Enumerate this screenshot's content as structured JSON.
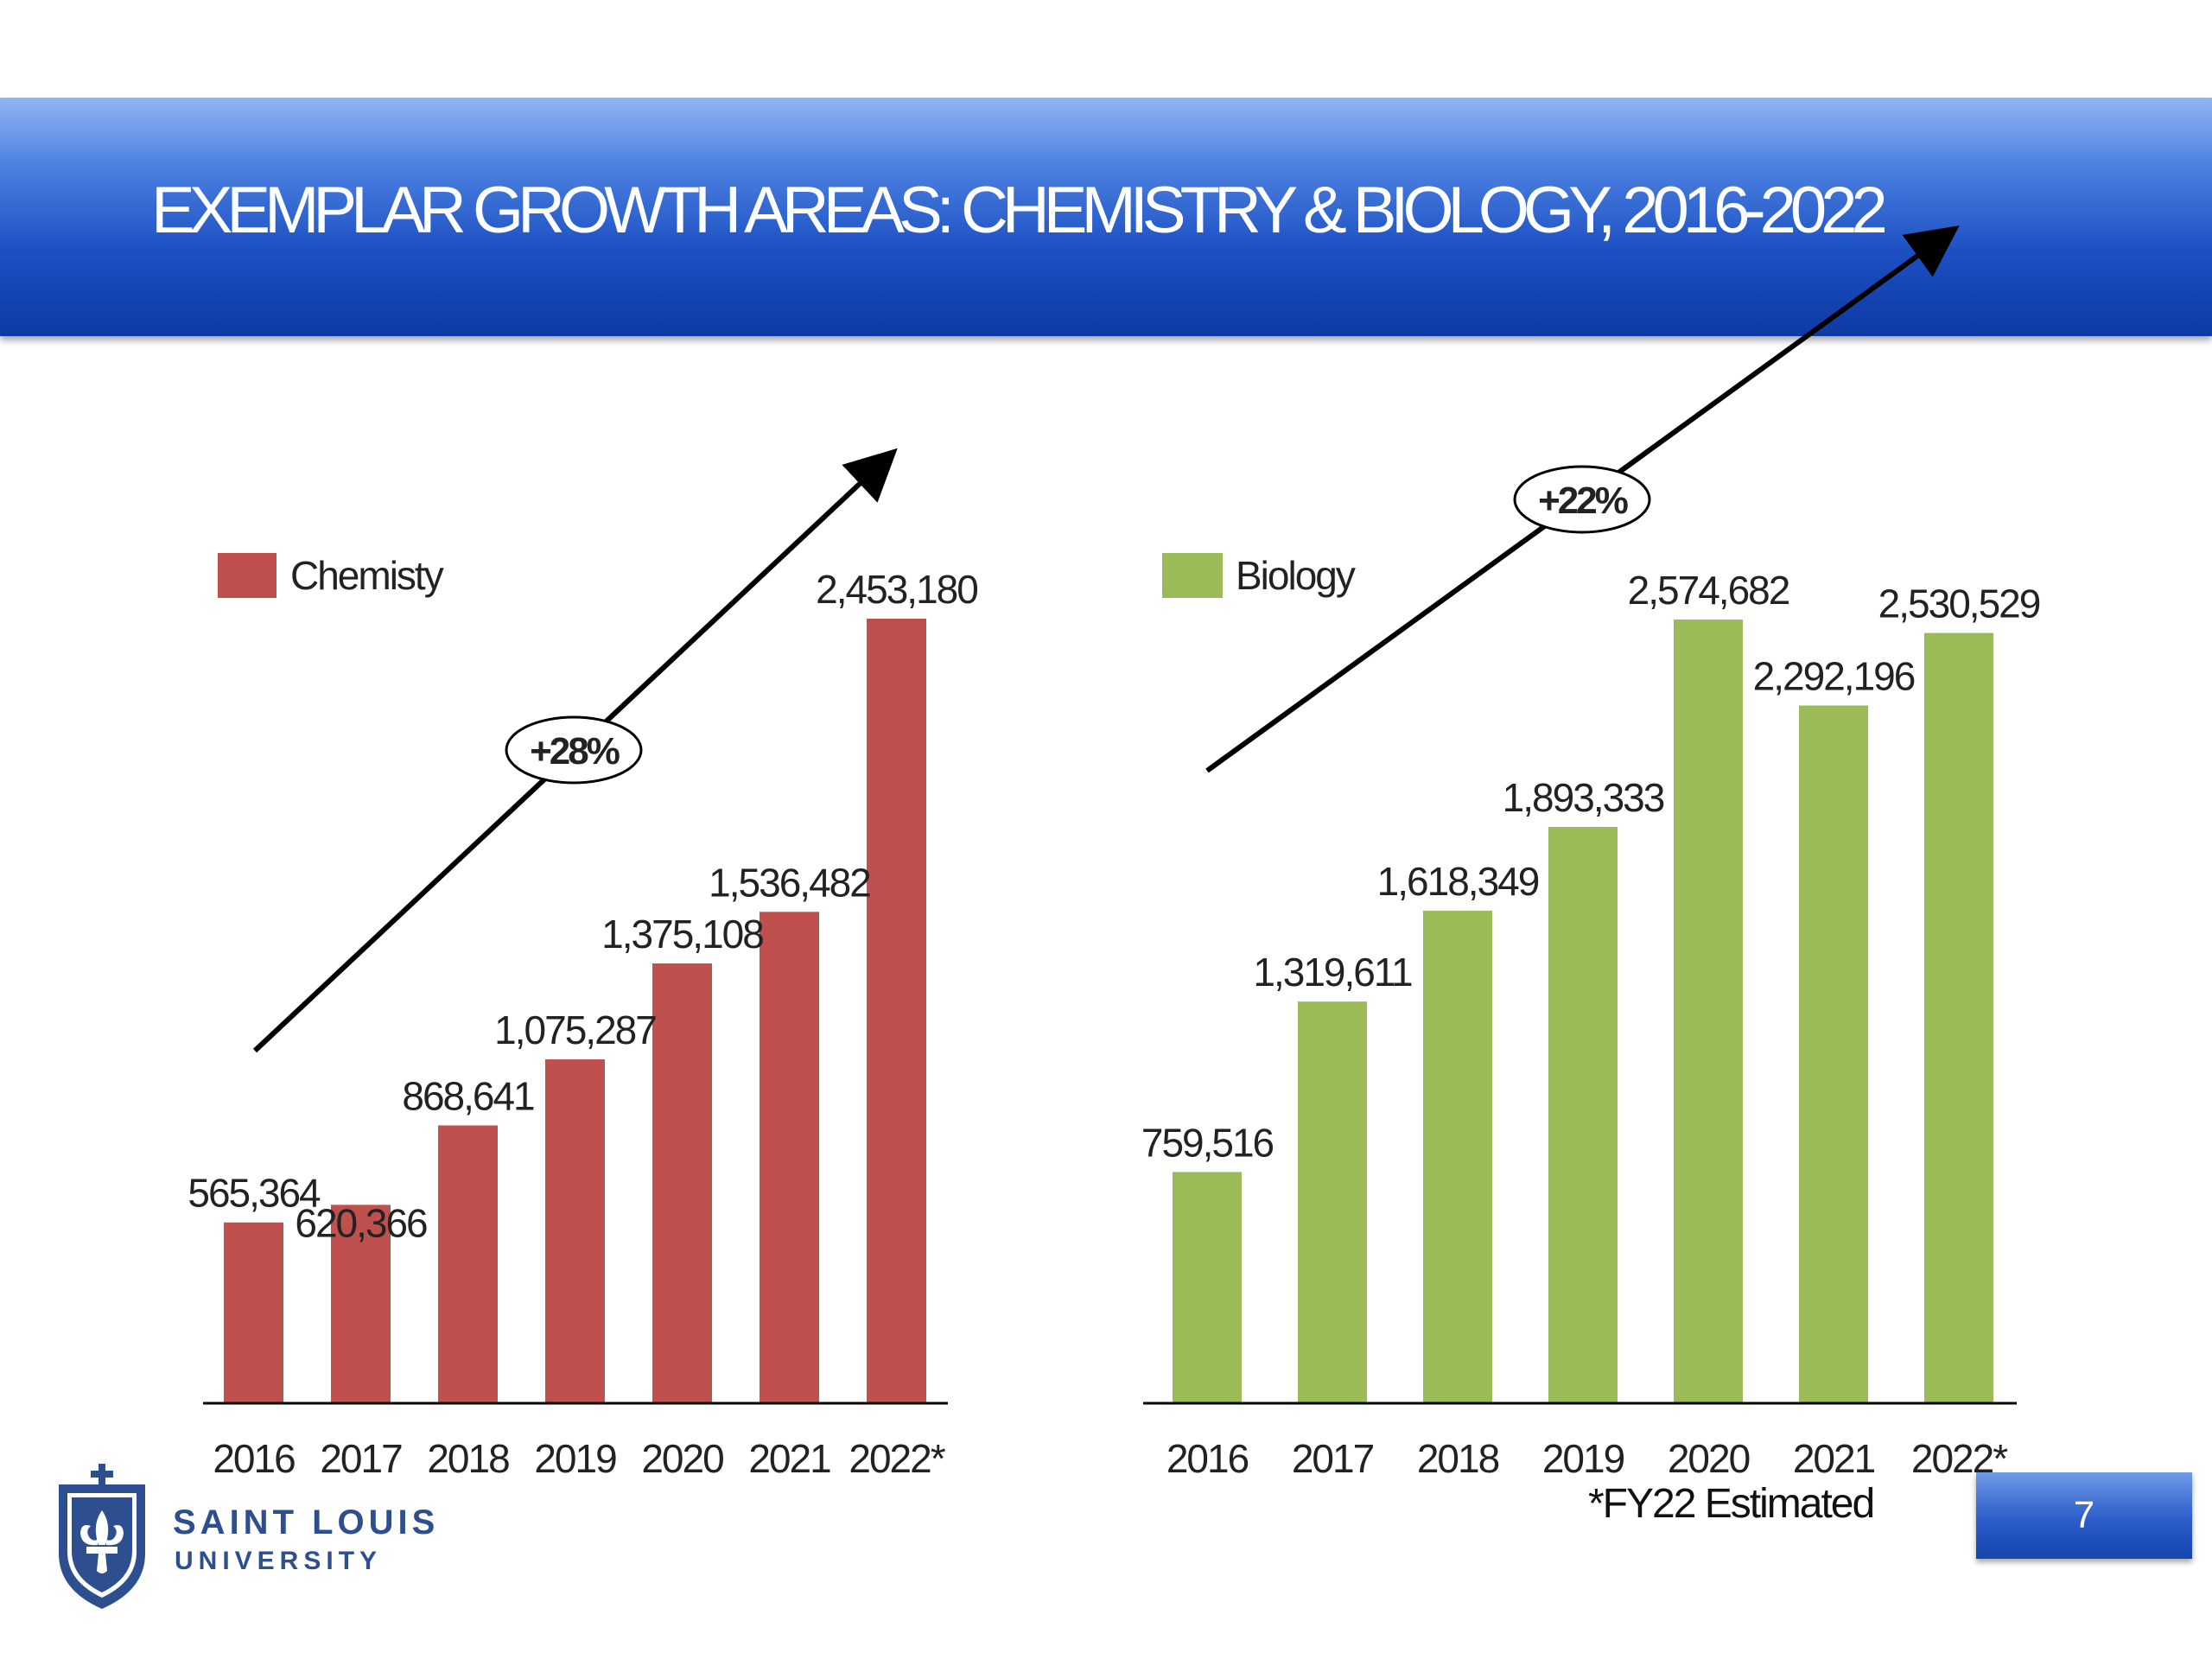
{
  "slide": {
    "title": "EXEMPLAR GROWTH AREAS: CHEMISTRY &  BIOLOGY, 2016-2022",
    "footnote": "*FY22 Estimated",
    "page_number": "7",
    "banner_color": "#1c4fc2"
  },
  "logo": {
    "line1": "SAINT LOUIS",
    "line2": "UNIVERSITY",
    "color": "#2e4f8f"
  },
  "chart_data": [
    {
      "type": "bar",
      "categories": [
        "2016",
        "2017",
        "2018",
        "2019",
        "2020",
        "2021",
        "2022*"
      ],
      "series": [
        {
          "name": "Chemisty",
          "values": [
            565364,
            620366,
            868641,
            1075287,
            1375108,
            1536482,
            2453180
          ],
          "labels": [
            "565,364",
            "620,366",
            "868,641",
            "1,075,287",
            "1,375,108",
            "1,536,482",
            "2,453,180"
          ],
          "color": "#c0504d"
        }
      ],
      "annotation": "+28%",
      "ylim": [
        0,
        2453180
      ],
      "legend_position": "top-left",
      "grid": false
    },
    {
      "type": "bar",
      "categories": [
        "2016",
        "2017",
        "2018",
        "2019",
        "2020",
        "2021",
        "2022*"
      ],
      "series": [
        {
          "name": "Biology",
          "values": [
            759516,
            1319611,
            1618349,
            1893333,
            2574682,
            2292196,
            2530529
          ],
          "labels": [
            "759,516",
            "1,319,611",
            "1,618,349",
            "1,893,333",
            "2,574,682",
            "2,292,196",
            "2,530,529"
          ],
          "color": "#9bbb59"
        }
      ],
      "annotation": "+22%",
      "ylim": [
        0,
        2574682
      ],
      "legend_position": "top-left",
      "grid": false
    }
  ]
}
